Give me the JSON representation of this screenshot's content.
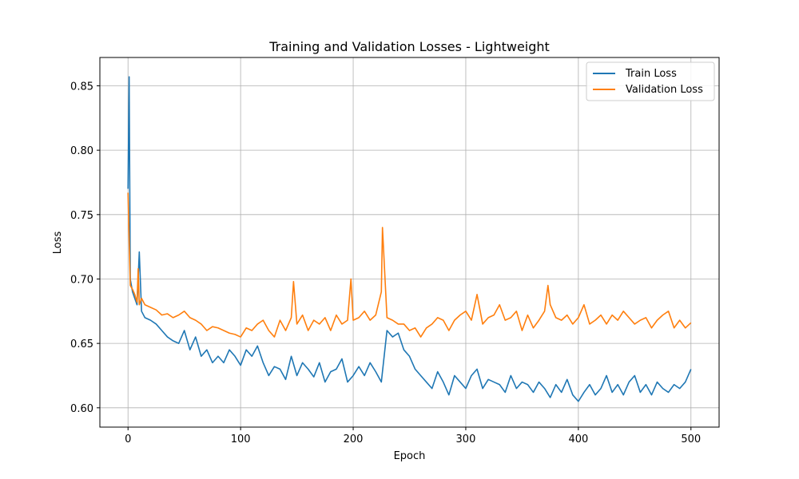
{
  "chart_data": {
    "type": "line",
    "title": "Training and Validation Losses - Lightweight",
    "xlabel": "Epoch",
    "ylabel": "Loss",
    "xlim": [
      -25,
      525
    ],
    "ylim": [
      0.585,
      0.872
    ],
    "xticks": [
      0,
      100,
      200,
      300,
      400,
      500
    ],
    "yticks": [
      0.6,
      0.65,
      0.7,
      0.75,
      0.8,
      0.85
    ],
    "xtick_labels": [
      "0",
      "100",
      "200",
      "300",
      "400",
      "500"
    ],
    "ytick_labels": [
      "0.60",
      "0.65",
      "0.70",
      "0.75",
      "0.80",
      "0.85"
    ],
    "grid": true,
    "legend_position": "top-right",
    "series": [
      {
        "name": "Train Loss",
        "color": "#1f77b4",
        "x": [
          0,
          1,
          2,
          4,
          6,
          8,
          10,
          12,
          15,
          20,
          25,
          30,
          35,
          40,
          45,
          50,
          55,
          60,
          65,
          70,
          75,
          80,
          85,
          90,
          95,
          100,
          105,
          110,
          115,
          120,
          125,
          130,
          135,
          140,
          145,
          150,
          155,
          160,
          165,
          170,
          175,
          180,
          185,
          190,
          195,
          200,
          205,
          210,
          215,
          220,
          225,
          230,
          235,
          240,
          245,
          250,
          255,
          260,
          265,
          270,
          275,
          280,
          285,
          290,
          295,
          300,
          305,
          310,
          315,
          320,
          325,
          330,
          335,
          340,
          345,
          350,
          355,
          360,
          365,
          370,
          375,
          380,
          385,
          390,
          395,
          400,
          405,
          410,
          415,
          420,
          425,
          430,
          435,
          440,
          445,
          450,
          455,
          460,
          465,
          470,
          475,
          480,
          485,
          490,
          495,
          500
        ],
        "y": [
          0.77,
          0.857,
          0.7,
          0.69,
          0.685,
          0.68,
          0.721,
          0.675,
          0.67,
          0.668,
          0.665,
          0.66,
          0.655,
          0.652,
          0.65,
          0.66,
          0.645,
          0.655,
          0.64,
          0.645,
          0.635,
          0.64,
          0.635,
          0.645,
          0.64,
          0.633,
          0.645,
          0.64,
          0.648,
          0.635,
          0.625,
          0.632,
          0.63,
          0.622,
          0.64,
          0.625,
          0.635,
          0.63,
          0.624,
          0.635,
          0.62,
          0.628,
          0.63,
          0.638,
          0.62,
          0.625,
          0.632,
          0.625,
          0.635,
          0.628,
          0.62,
          0.66,
          0.655,
          0.658,
          0.645,
          0.64,
          0.63,
          0.625,
          0.62,
          0.615,
          0.628,
          0.62,
          0.61,
          0.625,
          0.62,
          0.615,
          0.625,
          0.63,
          0.615,
          0.622,
          0.62,
          0.618,
          0.612,
          0.625,
          0.615,
          0.62,
          0.618,
          0.612,
          0.62,
          0.615,
          0.608,
          0.618,
          0.612,
          0.622,
          0.61,
          0.605,
          0.612,
          0.618,
          0.61,
          0.615,
          0.625,
          0.612,
          0.618,
          0.61,
          0.62,
          0.625,
          0.612,
          0.618,
          0.61,
          0.62,
          0.615,
          0.612,
          0.618,
          0.615,
          0.62,
          0.63
        ]
      },
      {
        "name": "Validation Loss",
        "color": "#ff7f0e",
        "x": [
          0,
          1,
          2,
          4,
          6,
          8,
          9,
          10,
          12,
          15,
          20,
          25,
          30,
          35,
          40,
          45,
          50,
          55,
          60,
          65,
          70,
          75,
          80,
          85,
          90,
          95,
          100,
          105,
          110,
          115,
          120,
          125,
          130,
          135,
          140,
          145,
          147,
          150,
          155,
          160,
          165,
          170,
          175,
          180,
          185,
          190,
          195,
          198,
          200,
          205,
          210,
          215,
          220,
          225,
          226,
          230,
          235,
          240,
          245,
          250,
          255,
          260,
          265,
          270,
          275,
          280,
          285,
          290,
          295,
          300,
          305,
          310,
          315,
          320,
          325,
          330,
          335,
          340,
          345,
          350,
          355,
          360,
          365,
          370,
          373,
          375,
          380,
          385,
          390,
          395,
          400,
          405,
          410,
          415,
          420,
          425,
          430,
          435,
          440,
          445,
          450,
          455,
          460,
          465,
          470,
          475,
          480,
          485,
          490,
          495,
          500
        ],
        "y": [
          0.767,
          0.73,
          0.695,
          0.692,
          0.688,
          0.682,
          0.708,
          0.68,
          0.685,
          0.68,
          0.678,
          0.676,
          0.672,
          0.673,
          0.67,
          0.672,
          0.675,
          0.67,
          0.668,
          0.665,
          0.66,
          0.663,
          0.662,
          0.66,
          0.658,
          0.657,
          0.655,
          0.662,
          0.66,
          0.665,
          0.668,
          0.66,
          0.655,
          0.668,
          0.66,
          0.67,
          0.698,
          0.665,
          0.672,
          0.66,
          0.668,
          0.665,
          0.67,
          0.66,
          0.672,
          0.665,
          0.668,
          0.7,
          0.668,
          0.67,
          0.675,
          0.668,
          0.672,
          0.69,
          0.74,
          0.67,
          0.668,
          0.665,
          0.665,
          0.66,
          0.662,
          0.655,
          0.662,
          0.665,
          0.67,
          0.668,
          0.66,
          0.668,
          0.672,
          0.675,
          0.668,
          0.688,
          0.665,
          0.67,
          0.672,
          0.68,
          0.668,
          0.67,
          0.675,
          0.66,
          0.672,
          0.662,
          0.668,
          0.675,
          0.695,
          0.68,
          0.67,
          0.668,
          0.672,
          0.665,
          0.67,
          0.68,
          0.665,
          0.668,
          0.672,
          0.665,
          0.672,
          0.668,
          0.675,
          0.67,
          0.665,
          0.668,
          0.67,
          0.662,
          0.668,
          0.672,
          0.675,
          0.662,
          0.668,
          0.662,
          0.666
        ]
      }
    ]
  }
}
